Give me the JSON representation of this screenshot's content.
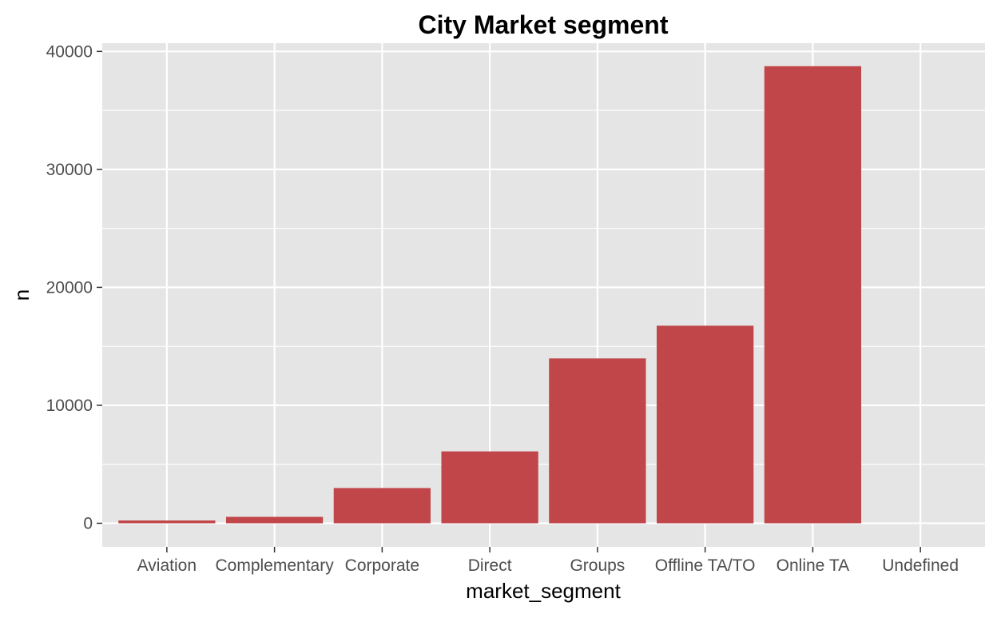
{
  "chart_data": {
    "type": "bar",
    "title": "City Market segment",
    "xlabel": "market_segment",
    "ylabel": "n",
    "categories": [
      "Aviation",
      "Complementary",
      "Corporate",
      "Direct",
      "Groups",
      "Offline TA/TO",
      "Online TA",
      "Undefined"
    ],
    "values": [
      237,
      542,
      2986,
      6093,
      13975,
      16747,
      38748,
      2
    ],
    "ylim": [
      -2000,
      40700
    ],
    "yticks": [
      0,
      10000,
      20000,
      30000,
      40000
    ],
    "ytick_labels": [
      "0",
      "10000",
      "20000",
      "30000",
      "40000"
    ],
    "grid": true,
    "legend": "none",
    "colors": {
      "bar": "#C0464A",
      "panel": "#E5E5E5",
      "grid": "#FFFFFF",
      "tick_text": "#4D4D4D",
      "text": "#000000"
    }
  }
}
